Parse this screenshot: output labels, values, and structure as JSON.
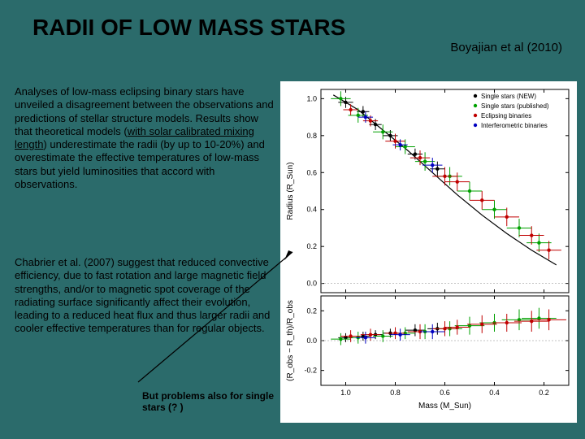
{
  "title": "RADII OF LOW MASS STARS",
  "citation": "Boyajian et\nal (2010)",
  "para1_a": "Analyses of low-mass eclipsing binary stars have unveiled a disagreement between the observations and predictions of stellar structure models. Results show that theoretical models (",
  "para1_hl": "with solar calibrated mixing length",
  "para1_b": ") underestimate the radii (by up to 10-20%) and overestimate the effective temperatures of low-mass stars but yield luminosities that accord with observations.",
  "para2": "Chabrier et al. (2007) suggest that reduced convective efficiency, due to fast rotation and large magnetic field strengths, and/or to magnetic spot coverage of the radiating surface significantly affect their evolution, leading to a reduced heat flux and thus larger radii and cooler effective temperatures than for regular objects.",
  "caption": "But problems also for single stars (? )",
  "chart": {
    "top": {
      "xlim": [
        1.1,
        0.1
      ],
      "ylim": [
        -0.05,
        1.05
      ],
      "xticks": [
        1.0,
        0.8,
        0.6,
        0.4,
        0.2
      ],
      "yticks": [
        0.0,
        0.2,
        0.4,
        0.6,
        0.8,
        1.0
      ],
      "xlabel": "",
      "ylabel": "Radius (R_Sun)",
      "legend": [
        {
          "label": "Single stars (NEW)",
          "color": "#000000",
          "marker": "circle"
        },
        {
          "label": "Single stars (published)",
          "color": "#00a000",
          "marker": "circle"
        },
        {
          "label": "Eclipsing binaries",
          "color": "#c00000",
          "marker": "circle"
        },
        {
          "label": "Interferometric binaries",
          "color": "#0000c0",
          "marker": "circle"
        }
      ],
      "series": [
        {
          "color": "#000000",
          "points": [
            [
              1.0,
              0.98,
              0.03,
              0.03
            ],
            [
              0.93,
              0.93,
              0.025,
              0.03
            ],
            [
              0.88,
              0.86,
              0.025,
              0.03
            ],
            [
              0.82,
              0.8,
              0.03,
              0.03
            ],
            [
              0.72,
              0.7,
              0.03,
              0.03
            ],
            [
              0.63,
              0.62,
              0.03,
              0.04
            ]
          ]
        },
        {
          "color": "#00a000",
          "points": [
            [
              1.02,
              1.0,
              0.04,
              0.04
            ],
            [
              0.95,
              0.91,
              0.04,
              0.04
            ],
            [
              0.85,
              0.82,
              0.04,
              0.04
            ],
            [
              0.76,
              0.74,
              0.04,
              0.04
            ],
            [
              0.68,
              0.66,
              0.04,
              0.05
            ],
            [
              0.58,
              0.58,
              0.05,
              0.05
            ],
            [
              0.5,
              0.5,
              0.05,
              0.05
            ],
            [
              0.4,
              0.4,
              0.05,
              0.05
            ],
            [
              0.3,
              0.3,
              0.05,
              0.05
            ],
            [
              0.22,
              0.22,
              0.05,
              0.05
            ]
          ]
        },
        {
          "color": "#c00000",
          "points": [
            [
              0.98,
              0.94,
              0.03,
              0.03
            ],
            [
              0.9,
              0.88,
              0.03,
              0.03
            ],
            [
              0.8,
              0.77,
              0.04,
              0.04
            ],
            [
              0.7,
              0.68,
              0.04,
              0.04
            ],
            [
              0.6,
              0.58,
              0.05,
              0.05
            ],
            [
              0.55,
              0.55,
              0.05,
              0.05
            ],
            [
              0.45,
              0.45,
              0.05,
              0.05
            ],
            [
              0.35,
              0.36,
              0.05,
              0.05
            ],
            [
              0.25,
              0.26,
              0.05,
              0.05
            ],
            [
              0.18,
              0.18,
              0.05,
              0.05
            ]
          ]
        },
        {
          "color": "#0000c0",
          "points": [
            [
              0.92,
              0.9,
              0.03,
              0.03
            ],
            [
              0.78,
              0.75,
              0.03,
              0.03
            ],
            [
              0.65,
              0.64,
              0.04,
              0.04
            ]
          ]
        }
      ],
      "model_line": [
        [
          1.05,
          1.02
        ],
        [
          0.95,
          0.94
        ],
        [
          0.85,
          0.83
        ],
        [
          0.75,
          0.72
        ],
        [
          0.65,
          0.6
        ],
        [
          0.55,
          0.48
        ],
        [
          0.45,
          0.37
        ],
        [
          0.35,
          0.27
        ],
        [
          0.25,
          0.18
        ],
        [
          0.15,
          0.1
        ]
      ]
    },
    "bottom": {
      "xlim": [
        1.1,
        0.1
      ],
      "ylim": [
        -0.3,
        0.3
      ],
      "xticks": [
        1.0,
        0.8,
        0.6,
        0.4,
        0.2
      ],
      "yticks": [
        -0.2,
        0.0,
        0.2
      ],
      "xlabel": "Mass (M_Sun)",
      "ylabel": "(R_obs − R_th)/R_obs",
      "series": [
        {
          "color": "#000000",
          "points": [
            [
              1.0,
              0.02,
              0.03,
              0.03
            ],
            [
              0.93,
              0.03,
              0.03,
              0.03
            ],
            [
              0.88,
              0.04,
              0.03,
              0.03
            ],
            [
              0.82,
              0.05,
              0.03,
              0.03
            ],
            [
              0.72,
              0.07,
              0.04,
              0.04
            ],
            [
              0.63,
              0.08,
              0.04,
              0.04
            ]
          ]
        },
        {
          "color": "#00a000",
          "points": [
            [
              1.02,
              0.01,
              0.04,
              0.04
            ],
            [
              0.95,
              0.02,
              0.04,
              0.04
            ],
            [
              0.85,
              0.03,
              0.04,
              0.04
            ],
            [
              0.76,
              0.05,
              0.04,
              0.04
            ],
            [
              0.68,
              0.06,
              0.05,
              0.05
            ],
            [
              0.58,
              0.08,
              0.05,
              0.05
            ],
            [
              0.5,
              0.1,
              0.06,
              0.06
            ],
            [
              0.4,
              0.12,
              0.06,
              0.06
            ],
            [
              0.3,
              0.14,
              0.07,
              0.07
            ],
            [
              0.22,
              0.15,
              0.07,
              0.07
            ]
          ]
        },
        {
          "color": "#c00000",
          "points": [
            [
              0.98,
              0.03,
              0.04,
              0.04
            ],
            [
              0.9,
              0.04,
              0.04,
              0.04
            ],
            [
              0.8,
              0.05,
              0.04,
              0.04
            ],
            [
              0.7,
              0.06,
              0.05,
              0.05
            ],
            [
              0.6,
              0.08,
              0.05,
              0.05
            ],
            [
              0.55,
              0.09,
              0.05,
              0.05
            ],
            [
              0.45,
              0.11,
              0.06,
              0.06
            ],
            [
              0.35,
              0.12,
              0.06,
              0.06
            ],
            [
              0.25,
              0.13,
              0.07,
              0.07
            ],
            [
              0.18,
              0.14,
              0.07,
              0.07
            ]
          ]
        },
        {
          "color": "#0000c0",
          "points": [
            [
              0.92,
              0.02,
              0.04,
              0.04
            ],
            [
              0.78,
              0.04,
              0.04,
              0.04
            ],
            [
              0.65,
              0.06,
              0.05,
              0.05
            ]
          ]
        }
      ]
    },
    "axis_color": "#000000",
    "tick_fontsize": 9,
    "label_fontsize": 10,
    "legend_fontsize": 8,
    "background": "#ffffff",
    "model_line_color": "#000000"
  }
}
